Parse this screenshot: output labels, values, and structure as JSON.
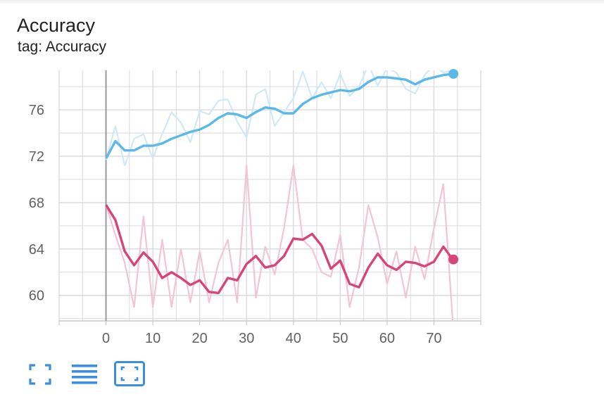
{
  "card": {
    "title": "Accuracy",
    "subtitle": "tag: Accuracy"
  },
  "toolbar": {
    "buttons": [
      {
        "icon": "fullscreen-icon"
      },
      {
        "icon": "data-table-icon"
      },
      {
        "icon": "fit-domain-icon"
      }
    ]
  },
  "colors": {
    "series_blue": "#5bb8e9",
    "series_blue_raw": "#cfe9f7",
    "series_pink": "#d6457a",
    "series_pink_raw": "#f3c4d5",
    "grid": "#dadada",
    "accent": "#3b8ee0"
  },
  "chart_data": {
    "type": "line",
    "title": "Accuracy",
    "subtitle": "tag: Accuracy",
    "xlim": [
      -10,
      80
    ],
    "ylim": [
      57.8,
      79.4
    ],
    "x_ticks": [
      0,
      10,
      20,
      30,
      40,
      50,
      60,
      70
    ],
    "y_ticks": [
      60,
      64,
      68,
      72,
      76
    ],
    "grid": true,
    "series": [
      {
        "style": "smoothed",
        "color": "#5bb8e9",
        "x": [
          0,
          2,
          4,
          6,
          8,
          10,
          12,
          14,
          16,
          18,
          20,
          22,
          24,
          26,
          28,
          30,
          32,
          34,
          36,
          38,
          40,
          42,
          44,
          46,
          48,
          50,
          52,
          54,
          56,
          58,
          60,
          62,
          64,
          66,
          68,
          70,
          72,
          74
        ],
        "values": [
          71.8,
          73.3,
          72.5,
          72.5,
          72.9,
          72.9,
          73.1,
          73.5,
          73.8,
          74.1,
          74.3,
          74.7,
          75.3,
          75.7,
          75.6,
          75.3,
          75.8,
          76.2,
          76.1,
          75.7,
          75.7,
          76.5,
          77.0,
          77.3,
          77.5,
          77.7,
          77.6,
          77.8,
          78.4,
          78.8,
          78.8,
          78.7,
          78.6,
          78.2,
          78.6,
          78.8,
          79.0,
          79.1
        ]
      },
      {
        "style": "raw",
        "color": "#cfe9f7",
        "x": [
          0,
          2,
          4,
          6,
          8,
          10,
          12,
          14,
          16,
          18,
          20,
          22,
          24,
          26,
          28,
          30,
          32,
          34,
          36,
          38,
          40,
          42,
          44,
          46,
          48,
          50,
          52,
          54,
          56,
          58,
          60,
          62,
          64,
          66,
          68,
          70,
          72,
          74
        ],
        "values": [
          71.7,
          74.6,
          71.2,
          73.5,
          73.9,
          71.8,
          73.9,
          75.8,
          74.9,
          73.2,
          75.9,
          75.6,
          76.8,
          76.9,
          75.0,
          73.6,
          77.3,
          77.8,
          74.6,
          75.8,
          77.0,
          79.3,
          77.0,
          78.4,
          77.0,
          79.1,
          77.2,
          78.0,
          79.9,
          78.1,
          79.6,
          79.2,
          77.8,
          77.4,
          79.0,
          79.8,
          79.2,
          79.4
        ]
      },
      {
        "style": "smoothed",
        "color": "#d6457a",
        "x": [
          0,
          2,
          4,
          6,
          8,
          10,
          12,
          14,
          16,
          18,
          20,
          22,
          24,
          26,
          28,
          30,
          32,
          34,
          36,
          38,
          40,
          42,
          44,
          46,
          48,
          50,
          52,
          54,
          56,
          58,
          60,
          62,
          64,
          66,
          68,
          70,
          72,
          74
        ],
        "values": [
          67.8,
          66.5,
          63.8,
          62.6,
          63.7,
          62.9,
          61.5,
          62.0,
          61.5,
          60.9,
          61.3,
          60.3,
          60.2,
          61.5,
          61.3,
          62.7,
          63.4,
          62.4,
          62.6,
          63.4,
          64.9,
          64.8,
          65.3,
          64.3,
          62.3,
          63.0,
          61.0,
          60.7,
          62.4,
          63.6,
          62.6,
          62.2,
          62.9,
          62.8,
          62.5,
          62.9,
          64.2,
          63.1
        ]
      },
      {
        "style": "raw",
        "color": "#f3c4d5",
        "x": [
          0,
          2,
          4,
          6,
          8,
          10,
          12,
          14,
          16,
          18,
          20,
          22,
          24,
          26,
          28,
          30,
          32,
          34,
          36,
          38,
          40,
          42,
          44,
          46,
          48,
          50,
          52,
          54,
          56,
          58,
          60,
          62,
          64,
          66,
          68,
          70,
          72,
          74
        ],
        "values": [
          67.8,
          65.2,
          62.8,
          59.0,
          66.8,
          59.0,
          64.8,
          59.0,
          64.0,
          59.4,
          63.8,
          59.4,
          62.8,
          64.8,
          59.4,
          71.2,
          59.8,
          64.2,
          61.8,
          65.8,
          71.2,
          64.8,
          64.0,
          62.0,
          61.6,
          65.2,
          59.0,
          62.4,
          67.8,
          65.0,
          61.0,
          63.8,
          59.8,
          64.2,
          61.4,
          65.8,
          69.6,
          57.8
        ]
      }
    ]
  }
}
